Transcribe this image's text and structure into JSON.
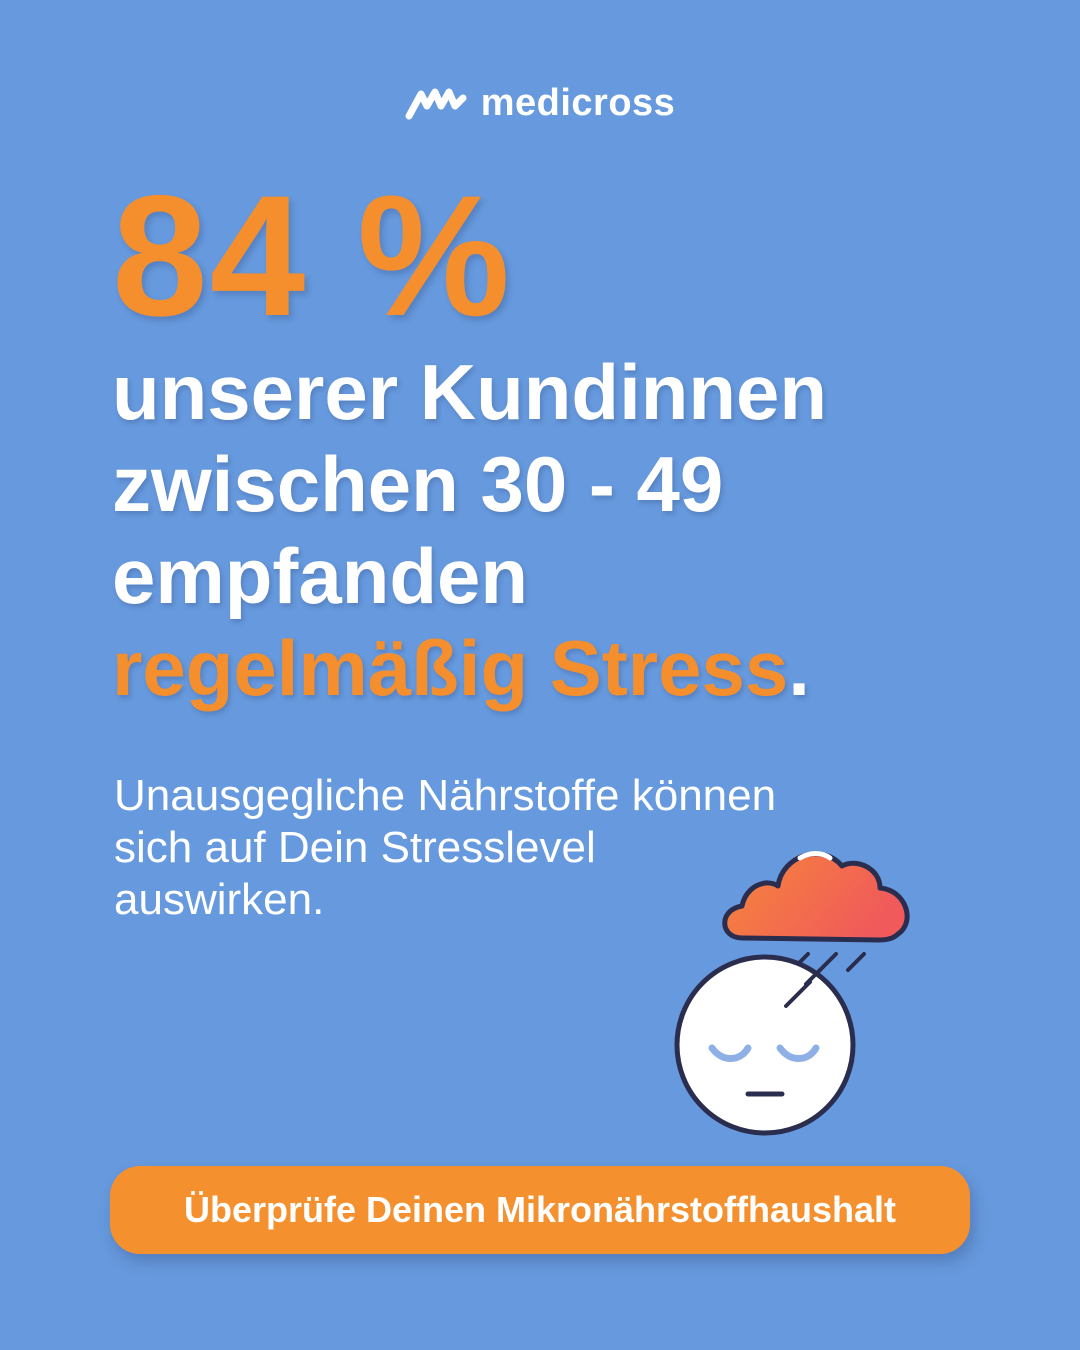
{
  "brand": {
    "name": "medicross",
    "logo_icon": "medicross-wave-logo-icon"
  },
  "headline": {
    "stat": "84 %",
    "line1": "unserer Kundinnen",
    "line2": "zwischen 30 - 49",
    "line3": "empfanden",
    "accent": "regelmäßig Stress",
    "period": "."
  },
  "body": {
    "line1": "Unausgegliche Nährstoffe können",
    "line2": "sich auf Dein Stresslevel",
    "line3": "auswirken."
  },
  "illustration": {
    "icon": "sad-face-with-rain-cloud-icon"
  },
  "cta": {
    "label": "Überprüfe Deinen Mikronährstoffhaushalt"
  },
  "colors": {
    "background": "#6699dd",
    "accent_orange": "#f58f2e",
    "text_white": "#ffffff",
    "outline_navy": "#2b2d4f"
  }
}
